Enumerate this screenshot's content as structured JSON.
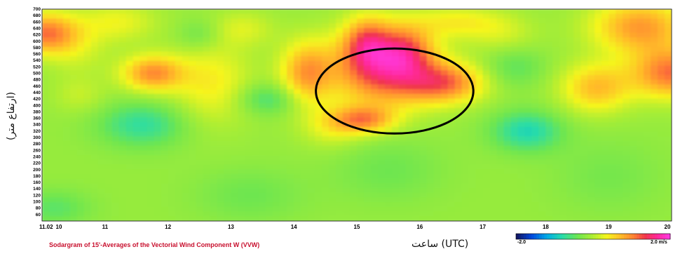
{
  "chart_data": {
    "type": "heatmap",
    "title": "Sodargram of 15'-Averages of the Vectorial Wind Component W (VVW)",
    "xlabel": "ساعت (UTC)",
    "ylabel": "(ارتفاع متر)",
    "date_label": "11.02",
    "x_ticks": [
      "10",
      "11",
      "12",
      "13",
      "14",
      "15",
      "16",
      "17",
      "18",
      "19",
      "20"
    ],
    "y_ticks": [
      "700",
      "680",
      "660",
      "640",
      "620",
      "600",
      "580",
      "560",
      "540",
      "520",
      "500",
      "480",
      "460",
      "440",
      "420",
      "400",
      "380",
      "360",
      "340",
      "320",
      "300",
      "280",
      "260",
      "240",
      "220",
      "200",
      "180",
      "160",
      "140",
      "120",
      "100",
      "80",
      "60"
    ],
    "xlim": [
      10,
      20
    ],
    "ylim": [
      40,
      700
    ],
    "colorbar": {
      "min_label": "-2.0",
      "max_label": "2.0 m/s",
      "min": -2.0,
      "max": 2.0
    },
    "blobs": [
      {
        "x": 10.05,
        "y": 625,
        "sx": 0.35,
        "sy": 45,
        "v": 1.2
      },
      {
        "x": 10.55,
        "y": 575,
        "sx": 0.35,
        "sy": 60,
        "v": 0.3
      },
      {
        "x": 10.6,
        "y": 430,
        "sx": 0.3,
        "sy": 40,
        "v": 0.25
      },
      {
        "x": 11.75,
        "y": 500,
        "sx": 0.35,
        "sy": 40,
        "v": 1.1
      },
      {
        "x": 11.2,
        "y": 660,
        "sx": 0.45,
        "sy": 45,
        "v": 0.45
      },
      {
        "x": 12.7,
        "y": 470,
        "sx": 0.45,
        "sy": 90,
        "v": 0.55
      },
      {
        "x": 13.2,
        "y": 640,
        "sx": 0.35,
        "sy": 40,
        "v": 0.35
      },
      {
        "x": 14.2,
        "y": 500,
        "sx": 0.3,
        "sy": 70,
        "v": 1.0
      },
      {
        "x": 15.15,
        "y": 600,
        "sx": 0.25,
        "sy": 55,
        "v": 0.8
      },
      {
        "x": 15.4,
        "y": 520,
        "sx": 0.55,
        "sy": 85,
        "v": 1.55
      },
      {
        "x": 15.8,
        "y": 570,
        "sx": 0.3,
        "sy": 55,
        "v": 0.7
      },
      {
        "x": 16.4,
        "y": 470,
        "sx": 0.45,
        "sy": 45,
        "v": 1.2
      },
      {
        "x": 15.1,
        "y": 355,
        "sx": 0.35,
        "sy": 30,
        "v": 1.0
      },
      {
        "x": 14.6,
        "y": 330,
        "sx": 0.35,
        "sy": 45,
        "v": 0.4
      },
      {
        "x": 16.6,
        "y": 660,
        "sx": 0.5,
        "sy": 35,
        "v": 0.5
      },
      {
        "x": 19.5,
        "y": 645,
        "sx": 0.55,
        "sy": 60,
        "v": 1.05
      },
      {
        "x": 20.0,
        "y": 500,
        "sx": 0.45,
        "sy": 55,
        "v": 1.25
      },
      {
        "x": 18.8,
        "y": 455,
        "sx": 0.4,
        "sy": 55,
        "v": 0.85
      },
      {
        "x": 17.3,
        "y": 620,
        "sx": 0.4,
        "sy": 45,
        "v": 0.3
      },
      {
        "x": 11.6,
        "y": 340,
        "sx": 0.5,
        "sy": 50,
        "v": -0.6
      },
      {
        "x": 13.6,
        "y": 420,
        "sx": 0.35,
        "sy": 35,
        "v": -0.5
      },
      {
        "x": 17.7,
        "y": 320,
        "sx": 0.4,
        "sy": 45,
        "v": -0.7
      },
      {
        "x": 12.5,
        "y": 620,
        "sx": 0.25,
        "sy": 35,
        "v": -0.3
      },
      {
        "x": 17.5,
        "y": 520,
        "sx": 0.35,
        "sy": 45,
        "v": -0.35
      },
      {
        "x": 10.2,
        "y": 80,
        "sx": 0.4,
        "sy": 40,
        "v": -0.35
      },
      {
        "x": 13.3,
        "y": 120,
        "sx": 0.6,
        "sy": 60,
        "v": -0.25
      },
      {
        "x": 15.5,
        "y": 200,
        "sx": 0.6,
        "sy": 70,
        "v": -0.25
      },
      {
        "x": 19.0,
        "y": 180,
        "sx": 0.6,
        "sy": 80,
        "v": -0.2
      }
    ],
    "base_value": -0.15,
    "highlight_circle": {
      "cx": 15.6,
      "cy": 445,
      "rx": 1.25,
      "ry": 265
    }
  }
}
